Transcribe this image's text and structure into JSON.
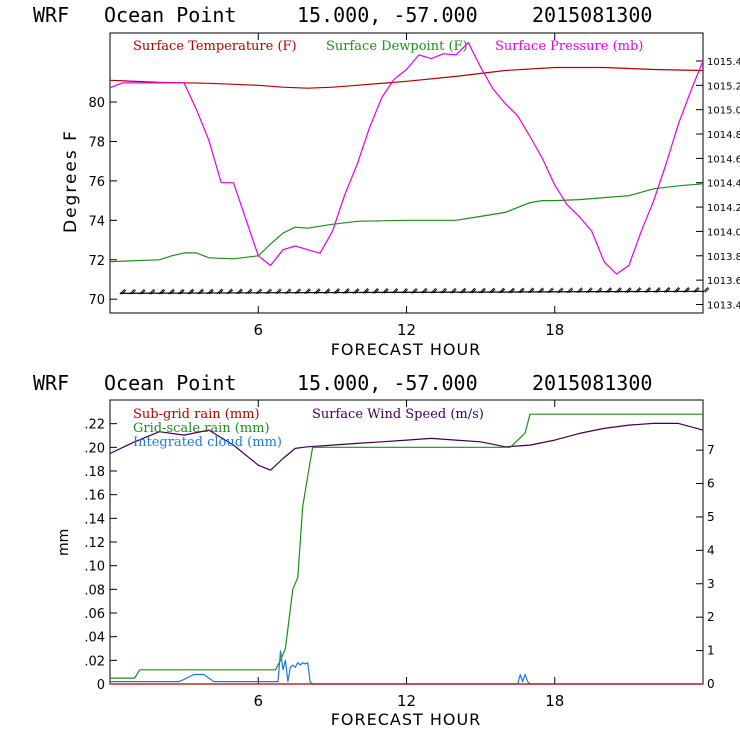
{
  "page": {
    "top_header": {
      "model": "WRF",
      "location": "Ocean Point",
      "coords": "15.000, -57.000",
      "init": "2015081300"
    },
    "bottom_header": {
      "model": "WRF",
      "location": "Ocean Point",
      "coords": "15.000, -57.000",
      "init": "2015081300"
    }
  },
  "chart_data": [
    {
      "type": "line",
      "title": "WRF Ocean Point 15.000, -57.000 2015081300",
      "xlabel": "FORECAST HOUR",
      "ylabel": "Degrees F",
      "x_range": [
        0,
        24
      ],
      "x_ticks": [
        6,
        12,
        18
      ],
      "x_tick_labels": [
        "6",
        "12",
        "18"
      ],
      "y_left_range": [
        69.3,
        83.5
      ],
      "y_left_ticks": [
        70,
        72,
        74,
        76,
        78,
        80
      ],
      "y_left_labels": [
        "70",
        "72",
        "74",
        "76",
        "78",
        "80"
      ],
      "y_right_range": [
        1013.33,
        1015.63
      ],
      "y_right_ticks": [
        1013.4,
        1013.6,
        1013.8,
        1014.0,
        1014.2,
        1014.4,
        1014.6,
        1014.8,
        1015.0,
        1015.2,
        1015.4
      ],
      "y_right_labels": [
        "1013.4",
        "1013.6",
        "1013.8",
        "1014.0",
        "1014.2",
        "1014.4",
        "1014.6",
        "1014.8",
        "1015.0",
        "1015.2",
        "1015.4"
      ],
      "legend": [
        {
          "label": "Surface Temperature (F)",
          "color": "#b40000"
        },
        {
          "label": "Surface Dewpoint (F)",
          "color": "#1e8c1e"
        },
        {
          "label": "Surface Pressure (mb)",
          "color": "#e600e6"
        }
      ],
      "series": [
        {
          "name": "Surface Temperature (F)",
          "axis": "left",
          "color": "#b40000",
          "x": [
            0,
            2,
            4,
            6,
            7,
            8,
            9,
            10,
            12,
            14,
            16,
            18,
            20,
            22,
            24
          ],
          "values": [
            81.1,
            81.0,
            80.95,
            80.85,
            80.75,
            80.7,
            80.75,
            80.85,
            81.05,
            81.3,
            81.6,
            81.75,
            81.75,
            81.65,
            81.6
          ]
        },
        {
          "name": "Surface Dewpoint (F)",
          "axis": "left",
          "color": "#1e8c1e",
          "x": [
            0,
            1,
            2,
            2.5,
            3,
            3.5,
            4,
            5,
            6,
            6.5,
            7,
            7.5,
            8,
            8.5,
            9,
            10,
            12,
            14,
            15,
            16,
            17,
            17.5,
            18,
            19,
            20,
            21,
            22,
            23,
            24
          ],
          "values": [
            71.9,
            71.95,
            72.0,
            72.2,
            72.35,
            72.35,
            72.1,
            72.05,
            72.2,
            72.8,
            73.35,
            73.65,
            73.6,
            73.7,
            73.8,
            73.95,
            74.0,
            74.0,
            74.2,
            74.4,
            74.9,
            75.0,
            75.0,
            75.05,
            75.15,
            75.25,
            75.6,
            75.75,
            75.85
          ]
        },
        {
          "name": "Surface Pressure (mb)",
          "axis": "right",
          "color": "#e600e6",
          "x": [
            0,
            0.5,
            1,
            2,
            3,
            3.5,
            4,
            4.5,
            5,
            5.5,
            6,
            6.5,
            7,
            7.5,
            8,
            8.5,
            9,
            9.5,
            10,
            10.5,
            11,
            11.5,
            12,
            12.5,
            13,
            13.5,
            14,
            14.5,
            15,
            15.5,
            16,
            16.5,
            17,
            17.5,
            18,
            18.5,
            19,
            19.5,
            20,
            20.5,
            21,
            21.5,
            22,
            22.5,
            23,
            23.5,
            24
          ],
          "values": [
            1015.18,
            1015.22,
            1015.22,
            1015.22,
            1015.22,
            1015.0,
            1014.75,
            1014.4,
            1014.4,
            1014.1,
            1013.8,
            1013.72,
            1013.85,
            1013.88,
            1013.85,
            1013.82,
            1014.0,
            1014.3,
            1014.55,
            1014.85,
            1015.1,
            1015.25,
            1015.33,
            1015.45,
            1015.42,
            1015.46,
            1015.45,
            1015.55,
            1015.35,
            1015.17,
            1015.05,
            1014.95,
            1014.78,
            1014.6,
            1014.38,
            1014.22,
            1014.12,
            1014.0,
            1013.75,
            1013.65,
            1013.72,
            1014.0,
            1014.25,
            1014.55,
            1014.88,
            1015.15,
            1015.4
          ]
        },
        {
          "name": "Wind Barbs",
          "axis": "left",
          "color": "#000000",
          "x": [
            0,
            24
          ],
          "values": [
            70.3,
            70.4
          ]
        }
      ]
    },
    {
      "type": "line",
      "title": "WRF Ocean Point 15.000, -57.000 2015081300",
      "xlabel": "FORECAST HOUR",
      "ylabel": "mm",
      "x_range": [
        0,
        24
      ],
      "x_ticks": [
        6,
        12,
        18
      ],
      "x_tick_labels": [
        "6",
        "12",
        "18"
      ],
      "y_left_range": [
        0,
        0.24
      ],
      "y_left_ticks": [
        0,
        0.02,
        0.04,
        0.06,
        0.08,
        0.1,
        0.12,
        0.14,
        0.16,
        0.18,
        0.2,
        0.22
      ],
      "y_left_labels": [
        "0",
        ".02",
        ".04",
        ".06",
        ".08",
        ".10",
        ".12",
        ".14",
        ".16",
        ".18",
        ".20",
        ".22"
      ],
      "y_right_range": [
        0,
        8.5
      ],
      "y_right_ticks": [
        0,
        1,
        2,
        3,
        4,
        5,
        6,
        7
      ],
      "y_right_labels": [
        "0",
        "1",
        "2",
        "3",
        "4",
        "5",
        "6",
        "7"
      ],
      "legend": [
        {
          "label": "Sub-grid rain (mm)",
          "color": "#b40000"
        },
        {
          "label": "Surface Wind Speed (m/s)",
          "color": "#3c0050"
        },
        {
          "label": "Grid-scale rain (mm)",
          "color": "#1e8c1e"
        },
        {
          "label": "Integrated cloud (mm)",
          "color": "#1e78dc"
        }
      ],
      "series": [
        {
          "name": "Surface Wind Speed (m/s)",
          "axis": "right",
          "color": "#3c0050",
          "x": [
            0,
            1,
            2,
            3,
            4,
            5,
            6,
            6.5,
            7,
            7.5,
            8,
            9,
            10,
            11,
            12,
            13,
            14,
            15,
            16,
            17,
            18,
            19,
            20,
            21,
            22,
            23,
            24
          ],
          "values": [
            6.9,
            7.25,
            7.55,
            7.45,
            7.6,
            7.15,
            6.55,
            6.4,
            6.75,
            7.05,
            7.1,
            7.15,
            7.2,
            7.25,
            7.3,
            7.35,
            7.3,
            7.25,
            7.1,
            7.15,
            7.3,
            7.5,
            7.65,
            7.75,
            7.8,
            7.8,
            7.6
          ]
        },
        {
          "name": "Grid-scale rain (mm)",
          "axis": "left",
          "color": "#1e8c1e",
          "x": [
            0,
            1,
            1.2,
            2,
            6.7,
            6.9,
            7.1,
            7.4,
            7.6,
            7.8,
            8.2,
            8.4,
            16.2,
            16.4,
            16.8,
            17,
            24
          ],
          "values": [
            0.005,
            0.005,
            0.012,
            0.012,
            0.012,
            0.02,
            0.03,
            0.08,
            0.09,
            0.15,
            0.2,
            0.2,
            0.2,
            0.204,
            0.212,
            0.228,
            0.228
          ]
        },
        {
          "name": "Integrated cloud (mm)",
          "axis": "left",
          "color": "#1e78dc",
          "x": [
            0,
            2.8,
            3,
            3.4,
            3.8,
            4.2,
            6.8,
            6.9,
            7.0,
            7.1,
            7.2,
            7.3,
            7.4,
            7.5,
            7.6,
            7.7,
            7.8,
            7.9,
            8.0,
            8.1,
            8.2,
            16.5,
            16.6,
            16.7,
            16.8,
            16.9,
            17.0,
            24
          ],
          "values": [
            0.002,
            0.002,
            0.004,
            0.008,
            0.008,
            0.002,
            0.002,
            0.028,
            0.012,
            0.02,
            0.002,
            0.014,
            0.016,
            0.014,
            0.018,
            0.016,
            0.018,
            0.017,
            0.018,
            0.002,
            0.0,
            0.0,
            0.008,
            0.002,
            0.008,
            0.002,
            0.0,
            0.0
          ]
        },
        {
          "name": "Sub-grid rain (mm)",
          "axis": "left",
          "color": "#b40000",
          "x": [
            0,
            24
          ],
          "values": [
            0.0,
            0.0
          ]
        }
      ]
    }
  ]
}
